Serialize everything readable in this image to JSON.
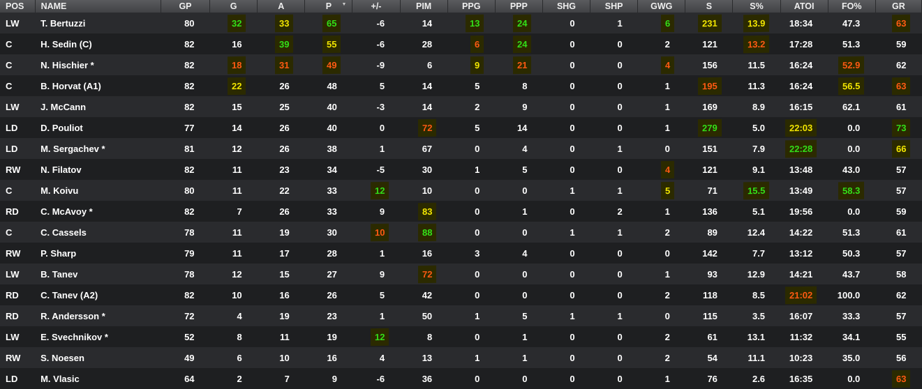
{
  "colors": {
    "green": "#33e018",
    "yellow": "#f2e600",
    "orange": "#ff5a12",
    "highlight_bg": "#2b2a00"
  },
  "sort": {
    "column": "p",
    "direction": "descending"
  },
  "columns": [
    {
      "key": "pos",
      "label": "POS"
    },
    {
      "key": "name",
      "label": "NAME"
    },
    {
      "key": "gp",
      "label": "GP"
    },
    {
      "key": "g",
      "label": "G"
    },
    {
      "key": "a",
      "label": "A"
    },
    {
      "key": "p",
      "label": "P"
    },
    {
      "key": "pm",
      "label": "+/-"
    },
    {
      "key": "pim",
      "label": "PIM"
    },
    {
      "key": "ppg",
      "label": "PPG"
    },
    {
      "key": "ppp",
      "label": "PPP"
    },
    {
      "key": "shg",
      "label": "SHG"
    },
    {
      "key": "shp",
      "label": "SHP"
    },
    {
      "key": "gwg",
      "label": "GWG"
    },
    {
      "key": "s",
      "label": "S"
    },
    {
      "key": "spct",
      "label": "S%"
    },
    {
      "key": "atoi",
      "label": "ATOI"
    },
    {
      "key": "fo",
      "label": "FO%"
    },
    {
      "key": "gr",
      "label": "GR"
    }
  ],
  "rows": [
    {
      "pos": "LW",
      "name": "T. Bertuzzi",
      "gp": "80",
      "g": "32",
      "a": "33",
      "p": "65",
      "pm": "-6",
      "pim": "14",
      "ppg": "13",
      "ppp": "24",
      "shg": "0",
      "shp": "1",
      "gwg": "6",
      "s": "231",
      "spct": "13.9",
      "atoi": "18:34",
      "fo": "47.3",
      "gr": "63",
      "hl": {
        "g": "green",
        "a": "yellow",
        "p": "green",
        "ppg": "green",
        "ppp": "green",
        "gwg": "green",
        "s": "yellow",
        "spct": "yellow",
        "gr": "orange"
      }
    },
    {
      "pos": "C",
      "name": "H. Sedin (C)",
      "gp": "82",
      "g": "16",
      "a": "39",
      "p": "55",
      "pm": "-6",
      "pim": "28",
      "ppg": "6",
      "ppp": "24",
      "shg": "0",
      "shp": "0",
      "gwg": "2",
      "s": "121",
      "spct": "13.2",
      "atoi": "17:28",
      "fo": "51.3",
      "gr": "59",
      "hl": {
        "a": "green",
        "p": "yellow",
        "ppg": "orange",
        "ppp": "green",
        "spct": "orange"
      }
    },
    {
      "pos": "C",
      "name": "N. Hischier *",
      "gp": "82",
      "g": "18",
      "a": "31",
      "p": "49",
      "pm": "-9",
      "pim": "6",
      "ppg": "9",
      "ppp": "21",
      "shg": "0",
      "shp": "0",
      "gwg": "4",
      "s": "156",
      "spct": "11.5",
      "atoi": "16:24",
      "fo": "52.9",
      "gr": "62",
      "hl": {
        "g": "orange",
        "a": "orange",
        "p": "orange",
        "ppg": "yellow",
        "ppp": "orange",
        "gwg": "orange",
        "fo": "orange"
      }
    },
    {
      "pos": "C",
      "name": "B. Horvat (A1)",
      "gp": "82",
      "g": "22",
      "a": "26",
      "p": "48",
      "pm": "5",
      "pim": "14",
      "ppg": "5",
      "ppp": "8",
      "shg": "0",
      "shp": "0",
      "gwg": "1",
      "s": "195",
      "spct": "11.3",
      "atoi": "16:24",
      "fo": "56.5",
      "gr": "63",
      "hl": {
        "g": "yellow",
        "s": "orange",
        "fo": "yellow",
        "gr": "orange"
      }
    },
    {
      "pos": "LW",
      "name": "J. McCann",
      "gp": "82",
      "g": "15",
      "a": "25",
      "p": "40",
      "pm": "-3",
      "pim": "14",
      "ppg": "2",
      "ppp": "9",
      "shg": "0",
      "shp": "0",
      "gwg": "1",
      "s": "169",
      "spct": "8.9",
      "atoi": "16:15",
      "fo": "62.1",
      "gr": "61",
      "hl": {}
    },
    {
      "pos": "LD",
      "name": "D. Pouliot",
      "gp": "77",
      "g": "14",
      "a": "26",
      "p": "40",
      "pm": "0",
      "pim": "72",
      "ppg": "5",
      "ppp": "14",
      "shg": "0",
      "shp": "0",
      "gwg": "1",
      "s": "279",
      "spct": "5.0",
      "atoi": "22:03",
      "fo": "0.0",
      "gr": "73",
      "hl": {
        "pim": "orange",
        "s": "green",
        "atoi": "yellow",
        "gr": "green"
      }
    },
    {
      "pos": "LD",
      "name": "M. Sergachev *",
      "gp": "81",
      "g": "12",
      "a": "26",
      "p": "38",
      "pm": "1",
      "pim": "67",
      "ppg": "0",
      "ppp": "4",
      "shg": "0",
      "shp": "1",
      "gwg": "0",
      "s": "151",
      "spct": "7.9",
      "atoi": "22:28",
      "fo": "0.0",
      "gr": "66",
      "hl": {
        "atoi": "green",
        "gr": "yellow"
      }
    },
    {
      "pos": "RW",
      "name": "N. Filatov",
      "gp": "82",
      "g": "11",
      "a": "23",
      "p": "34",
      "pm": "-5",
      "pim": "30",
      "ppg": "1",
      "ppp": "5",
      "shg": "0",
      "shp": "0",
      "gwg": "4",
      "s": "121",
      "spct": "9.1",
      "atoi": "13:48",
      "fo": "43.0",
      "gr": "57",
      "hl": {
        "gwg": "orange"
      }
    },
    {
      "pos": "C",
      "name": "M. Koivu",
      "gp": "80",
      "g": "11",
      "a": "22",
      "p": "33",
      "pm": "12",
      "pim": "10",
      "ppg": "0",
      "ppp": "0",
      "shg": "1",
      "shp": "1",
      "gwg": "5",
      "s": "71",
      "spct": "15.5",
      "atoi": "13:49",
      "fo": "58.3",
      "gr": "57",
      "hl": {
        "pm": "green",
        "gwg": "yellow",
        "spct": "green",
        "fo": "green"
      }
    },
    {
      "pos": "RD",
      "name": "C. McAvoy *",
      "gp": "82",
      "g": "7",
      "a": "26",
      "p": "33",
      "pm": "9",
      "pim": "83",
      "ppg": "0",
      "ppp": "1",
      "shg": "0",
      "shp": "2",
      "gwg": "1",
      "s": "136",
      "spct": "5.1",
      "atoi": "19:56",
      "fo": "0.0",
      "gr": "59",
      "hl": {
        "pim": "yellow"
      }
    },
    {
      "pos": "C",
      "name": "C. Cassels",
      "gp": "78",
      "g": "11",
      "a": "19",
      "p": "30",
      "pm": "10",
      "pim": "88",
      "ppg": "0",
      "ppp": "0",
      "shg": "1",
      "shp": "1",
      "gwg": "2",
      "s": "89",
      "spct": "12.4",
      "atoi": "14:22",
      "fo": "51.3",
      "gr": "61",
      "hl": {
        "pm": "orange",
        "pim": "green"
      }
    },
    {
      "pos": "RW",
      "name": "P. Sharp",
      "gp": "79",
      "g": "11",
      "a": "17",
      "p": "28",
      "pm": "1",
      "pim": "16",
      "ppg": "3",
      "ppp": "4",
      "shg": "0",
      "shp": "0",
      "gwg": "0",
      "s": "142",
      "spct": "7.7",
      "atoi": "13:12",
      "fo": "50.3",
      "gr": "57",
      "hl": {}
    },
    {
      "pos": "LW",
      "name": "B. Tanev",
      "gp": "78",
      "g": "12",
      "a": "15",
      "p": "27",
      "pm": "9",
      "pim": "72",
      "ppg": "0",
      "ppp": "0",
      "shg": "0",
      "shp": "0",
      "gwg": "1",
      "s": "93",
      "spct": "12.9",
      "atoi": "14:21",
      "fo": "43.7",
      "gr": "58",
      "hl": {
        "pim": "orange"
      }
    },
    {
      "pos": "RD",
      "name": "C. Tanev (A2)",
      "gp": "82",
      "g": "10",
      "a": "16",
      "p": "26",
      "pm": "5",
      "pim": "42",
      "ppg": "0",
      "ppp": "0",
      "shg": "0",
      "shp": "0",
      "gwg": "2",
      "s": "118",
      "spct": "8.5",
      "atoi": "21:02",
      "fo": "100.0",
      "gr": "62",
      "hl": {
        "atoi": "orange"
      }
    },
    {
      "pos": "RD",
      "name": "R. Andersson *",
      "gp": "72",
      "g": "4",
      "a": "19",
      "p": "23",
      "pm": "1",
      "pim": "50",
      "ppg": "1",
      "ppp": "5",
      "shg": "1",
      "shp": "1",
      "gwg": "0",
      "s": "115",
      "spct": "3.5",
      "atoi": "16:07",
      "fo": "33.3",
      "gr": "57",
      "hl": {}
    },
    {
      "pos": "LW",
      "name": "E. Svechnikov *",
      "gp": "52",
      "g": "8",
      "a": "11",
      "p": "19",
      "pm": "12",
      "pim": "8",
      "ppg": "0",
      "ppp": "1",
      "shg": "0",
      "shp": "0",
      "gwg": "2",
      "s": "61",
      "spct": "13.1",
      "atoi": "11:32",
      "fo": "34.1",
      "gr": "55",
      "hl": {
        "pm": "green"
      }
    },
    {
      "pos": "RW",
      "name": "S. Noesen",
      "gp": "49",
      "g": "6",
      "a": "10",
      "p": "16",
      "pm": "4",
      "pim": "13",
      "ppg": "1",
      "ppp": "1",
      "shg": "0",
      "shp": "0",
      "gwg": "2",
      "s": "54",
      "spct": "11.1",
      "atoi": "10:23",
      "fo": "35.0",
      "gr": "56",
      "hl": {}
    },
    {
      "pos": "LD",
      "name": "M. Vlasic",
      "gp": "64",
      "g": "2",
      "a": "7",
      "p": "9",
      "pm": "-6",
      "pim": "36",
      "ppg": "0",
      "ppp": "0",
      "shg": "0",
      "shp": "0",
      "gwg": "1",
      "s": "76",
      "spct": "2.6",
      "atoi": "16:35",
      "fo": "0.0",
      "gr": "63",
      "hl": {
        "gr": "orange"
      }
    }
  ]
}
